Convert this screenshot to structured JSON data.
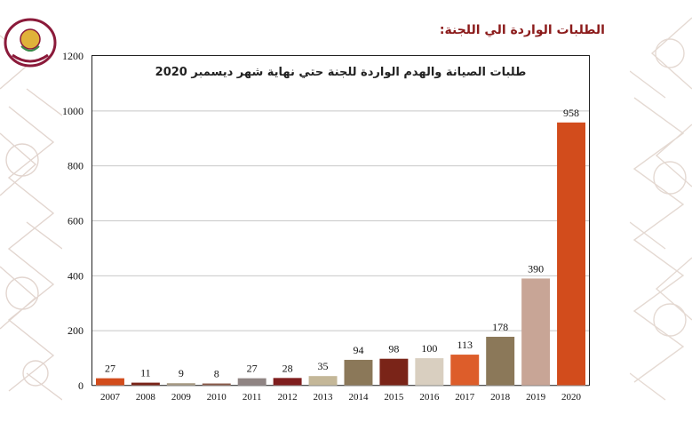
{
  "page": {
    "heading": "الطلبات الواردة الي اللجنة:",
    "logo_icon": "ministry-emblem-icon",
    "ornament_icon": "geometric-arabesque-pattern"
  },
  "chart_data": {
    "type": "bar",
    "title": "طلبات الصيانة والهدم الواردة للجنة حتي نهاية شهر ديسمبر 2020",
    "xlabel": "",
    "ylabel": "",
    "categories": [
      "2007",
      "2008",
      "2009",
      "2010",
      "2011",
      "2012",
      "2013",
      "2014",
      "2015",
      "2016",
      "2017",
      "2018",
      "2019",
      "2020"
    ],
    "values": [
      27,
      11,
      9,
      8,
      27,
      28,
      35,
      94,
      98,
      100,
      113,
      178,
      390,
      958
    ],
    "data_labels": [
      "27",
      "11",
      "9",
      "8",
      "27",
      "28",
      "35",
      "94",
      "98",
      "100",
      "113",
      "178",
      "390",
      "958"
    ],
    "colors": [
      "#d24c1c",
      "#7a2418",
      "#a89a84",
      "#8a5a4a",
      "#8f8483",
      "#7f1e1e",
      "#c4b798",
      "#8b7859",
      "#7a2418",
      "#d9cfc0",
      "#dd5d2a",
      "#8b7859",
      "#c8a596",
      "#d24c1c"
    ],
    "ylim": [
      0,
      1200
    ],
    "yticks": [
      0,
      200,
      400,
      600,
      800,
      1000,
      1200
    ],
    "ytick_labels": [
      "0",
      "200",
      "400",
      "600",
      "800",
      "1000",
      "1200"
    ],
    "grid": true,
    "legend": "none"
  }
}
